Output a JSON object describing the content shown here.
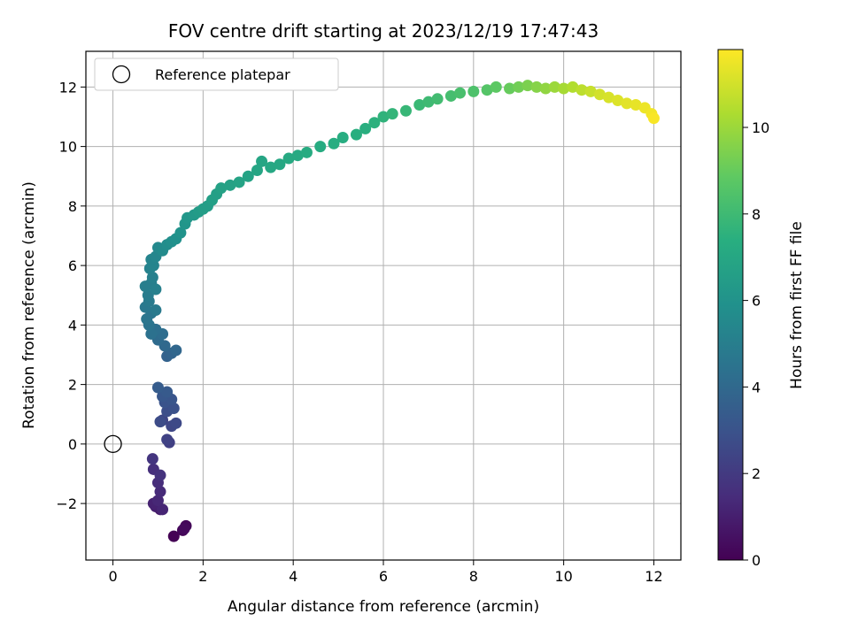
{
  "chart_data": {
    "type": "scatter",
    "title": "FOV centre drift starting at 2023/12/19 17:47:43",
    "xlabel": "Angular distance from reference (arcmin)",
    "ylabel": "Rotation from reference (arcmin)",
    "xlim": [
      -0.6,
      12.6
    ],
    "ylim": [
      -3.9,
      13.2
    ],
    "xticks": [
      0,
      2,
      4,
      6,
      8,
      10,
      12
    ],
    "yticks": [
      -2,
      0,
      2,
      4,
      6,
      8,
      10,
      12
    ],
    "xtick_labels": [
      "0",
      "2",
      "4",
      "6",
      "8",
      "10",
      "12"
    ],
    "ytick_labels": [
      "−2",
      "0",
      "2",
      "4",
      "6",
      "8",
      "10",
      "12"
    ],
    "grid": true,
    "colormap": "viridis",
    "colorbar": {
      "label": "Hours from first FF file",
      "range": [
        0,
        11.8
      ],
      "ticks": [
        0,
        2,
        4,
        6,
        8,
        10
      ],
      "tick_labels": [
        "0",
        "2",
        "4",
        "6",
        "8",
        "10"
      ]
    },
    "legend": {
      "position": "upper-left",
      "entries": [
        "Reference platepar"
      ]
    },
    "reference_point": {
      "x": 0,
      "y": 0,
      "label": "Reference platepar"
    },
    "points": [
      [
        1.35,
        -3.1,
        0.0
      ],
      [
        1.55,
        -2.9,
        0.1
      ],
      [
        1.62,
        -2.75,
        0.2
      ],
      [
        1.58,
        -2.85,
        0.3
      ],
      [
        1.05,
        -2.2,
        0.8
      ],
      [
        0.95,
        -2.1,
        1.0
      ],
      [
        0.9,
        -2.0,
        1.1
      ],
      [
        1.1,
        -2.2,
        1.2
      ],
      [
        1.0,
        -1.9,
        1.3
      ],
      [
        1.05,
        -1.6,
        1.4
      ],
      [
        1.0,
        -1.3,
        1.5
      ],
      [
        0.9,
        -0.85,
        1.6
      ],
      [
        1.05,
        -1.05,
        1.7
      ],
      [
        0.88,
        -0.5,
        1.8
      ],
      [
        1.25,
        0.05,
        2.2
      ],
      [
        1.2,
        0.15,
        2.3
      ],
      [
        1.1,
        0.8,
        2.4
      ],
      [
        1.3,
        0.6,
        2.5
      ],
      [
        1.4,
        0.7,
        2.6
      ],
      [
        1.05,
        0.75,
        2.7
      ],
      [
        1.2,
        1.1,
        2.8
      ],
      [
        1.35,
        1.2,
        2.9
      ],
      [
        1.15,
        1.4,
        3.0
      ],
      [
        1.3,
        1.5,
        3.1
      ],
      [
        1.1,
        1.6,
        3.2
      ],
      [
        1.2,
        1.75,
        3.3
      ],
      [
        1.0,
        1.9,
        3.4
      ],
      [
        1.2,
        2.95,
        3.7
      ],
      [
        1.3,
        3.05,
        3.8
      ],
      [
        1.4,
        3.15,
        3.9
      ],
      [
        1.15,
        3.3,
        4.0
      ],
      [
        1.0,
        3.5,
        4.1
      ],
      [
        1.1,
        3.7,
        4.2
      ],
      [
        0.95,
        3.85,
        4.3
      ],
      [
        0.85,
        3.7,
        4.4
      ],
      [
        0.8,
        4.0,
        4.5
      ],
      [
        0.75,
        4.2,
        4.6
      ],
      [
        0.85,
        4.4,
        4.6
      ],
      [
        0.72,
        4.6,
        4.7
      ],
      [
        0.8,
        4.8,
        4.8
      ],
      [
        0.95,
        4.5,
        4.8
      ],
      [
        0.78,
        5.0,
        4.9
      ],
      [
        0.72,
        5.3,
        5.0
      ],
      [
        0.85,
        5.4,
        5.0
      ],
      [
        0.95,
        5.2,
        5.1
      ],
      [
        0.88,
        5.6,
        5.1
      ],
      [
        0.82,
        5.9,
        5.2
      ],
      [
        0.9,
        6.0,
        5.3
      ],
      [
        0.85,
        6.2,
        5.3
      ],
      [
        0.95,
        6.3,
        5.4
      ],
      [
        1.0,
        6.6,
        5.5
      ],
      [
        1.1,
        6.5,
        5.6
      ],
      [
        1.2,
        6.7,
        5.7
      ],
      [
        1.3,
        6.8,
        5.8
      ],
      [
        1.4,
        6.9,
        5.9
      ],
      [
        1.5,
        7.1,
        6.0
      ],
      [
        1.6,
        7.4,
        6.1
      ],
      [
        1.65,
        7.6,
        6.2
      ],
      [
        1.8,
        7.7,
        6.3
      ],
      [
        1.9,
        7.8,
        6.4
      ],
      [
        2.0,
        7.9,
        6.5
      ],
      [
        2.1,
        8.0,
        6.5
      ],
      [
        2.2,
        8.2,
        6.6
      ],
      [
        2.3,
        8.4,
        6.6
      ],
      [
        2.4,
        8.6,
        6.7
      ],
      [
        2.6,
        8.7,
        6.7
      ],
      [
        2.8,
        8.8,
        6.8
      ],
      [
        3.0,
        9.0,
        6.8
      ],
      [
        3.2,
        9.2,
        6.9
      ],
      [
        3.3,
        9.5,
        6.9
      ],
      [
        3.5,
        9.3,
        7.0
      ],
      [
        3.7,
        9.4,
        7.0
      ],
      [
        3.9,
        9.6,
        7.1
      ],
      [
        4.1,
        9.7,
        7.1
      ],
      [
        4.3,
        9.8,
        7.2
      ],
      [
        4.6,
        10.0,
        7.2
      ],
      [
        4.9,
        10.1,
        7.3
      ],
      [
        5.1,
        10.3,
        7.3
      ],
      [
        5.4,
        10.4,
        7.4
      ],
      [
        5.6,
        10.6,
        7.4
      ],
      [
        5.8,
        10.8,
        7.5
      ],
      [
        6.0,
        11.0,
        7.6
      ],
      [
        6.2,
        11.1,
        7.7
      ],
      [
        6.5,
        11.2,
        7.8
      ],
      [
        6.8,
        11.4,
        7.9
      ],
      [
        7.0,
        11.5,
        8.0
      ],
      [
        7.2,
        11.6,
        8.1
      ],
      [
        7.5,
        11.7,
        8.2
      ],
      [
        7.7,
        11.8,
        8.3
      ],
      [
        8.0,
        11.85,
        8.4
      ],
      [
        8.3,
        11.9,
        8.6
      ],
      [
        8.5,
        12.0,
        8.8
      ],
      [
        8.8,
        11.95,
        9.0
      ],
      [
        9.0,
        12.0,
        9.2
      ],
      [
        9.2,
        12.05,
        9.4
      ],
      [
        9.4,
        12.0,
        9.6
      ],
      [
        9.6,
        11.95,
        9.8
      ],
      [
        9.8,
        12.0,
        10.0
      ],
      [
        10.0,
        11.95,
        10.2
      ],
      [
        10.2,
        12.0,
        10.4
      ],
      [
        10.4,
        11.9,
        10.6
      ],
      [
        10.6,
        11.85,
        10.8
      ],
      [
        10.8,
        11.75,
        11.0
      ],
      [
        11.0,
        11.65,
        11.1
      ],
      [
        11.2,
        11.55,
        11.2
      ],
      [
        11.4,
        11.45,
        11.3
      ],
      [
        11.6,
        11.4,
        11.4
      ],
      [
        11.8,
        11.3,
        11.5
      ],
      [
        11.95,
        11.1,
        11.6
      ],
      [
        12.0,
        10.95,
        11.7
      ]
    ]
  }
}
